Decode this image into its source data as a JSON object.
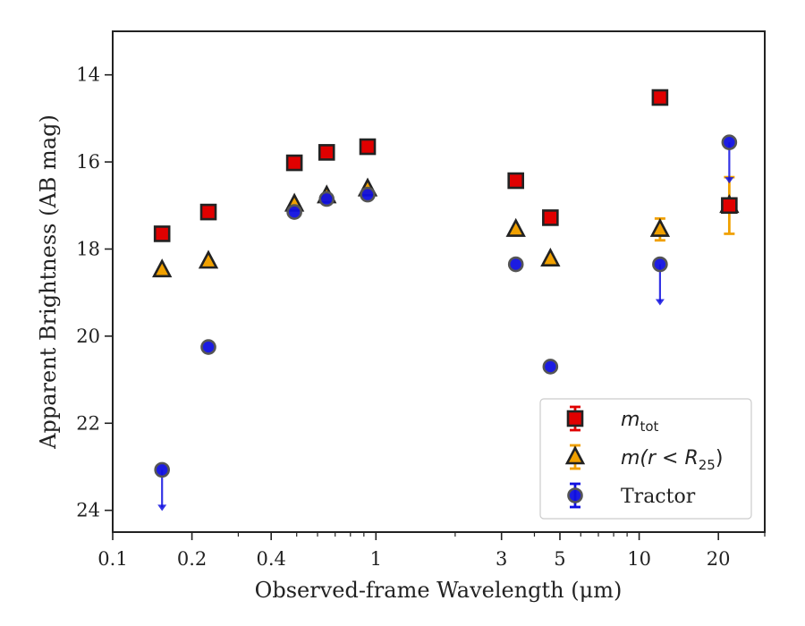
{
  "chart_data": {
    "type": "scatter",
    "xlabel": "Observed-frame Wavelength (μm)",
    "ylabel": "Apparent Brightness (AB mag)",
    "xscale": "log",
    "xlim": [
      0.1,
      30
    ],
    "ylim": [
      24.5,
      13
    ],
    "y_inverted": true,
    "grid": false,
    "legend_position": "lower-right",
    "x_ticks": [
      {
        "value": 0.1,
        "label": "0.1"
      },
      {
        "value": 0.2,
        "label": "0.2"
      },
      {
        "value": 0.4,
        "label": "0.4"
      },
      {
        "value": 1,
        "label": "1"
      },
      {
        "value": 3,
        "label": "3"
      },
      {
        "value": 5,
        "label": "5"
      },
      {
        "value": 10,
        "label": "10"
      },
      {
        "value": 20,
        "label": "20"
      }
    ],
    "y_ticks": [
      {
        "value": 14,
        "label": "14"
      },
      {
        "value": 16,
        "label": "16"
      },
      {
        "value": 18,
        "label": "18"
      },
      {
        "value": 20,
        "label": "20"
      },
      {
        "value": 22,
        "label": "22"
      },
      {
        "value": 24,
        "label": "24"
      }
    ],
    "series": [
      {
        "name": "m_tot",
        "legend_main": "m",
        "legend_sub": "tot",
        "marker": "square",
        "color": "#e00000",
        "points": [
          {
            "x": 0.154,
            "y": 17.65
          },
          {
            "x": 0.231,
            "y": 17.15
          },
          {
            "x": 0.49,
            "y": 16.02
          },
          {
            "x": 0.65,
            "y": 15.78
          },
          {
            "x": 0.93,
            "y": 15.65
          },
          {
            "x": 3.4,
            "y": 16.43
          },
          {
            "x": 4.6,
            "y": 17.28
          },
          {
            "x": 12.0,
            "y": 14.52
          },
          {
            "x": 22.0,
            "y": 17.0
          }
        ]
      },
      {
        "name": "m(r<R25)",
        "legend_main": "m(r < R",
        "legend_sub": "25",
        "legend_close": ")",
        "marker": "triangle",
        "color": "#f0a000",
        "points": [
          {
            "x": 0.154,
            "y": 18.48
          },
          {
            "x": 0.231,
            "y": 18.28
          },
          {
            "x": 0.49,
            "y": 16.97
          },
          {
            "x": 0.65,
            "y": 16.78
          },
          {
            "x": 0.93,
            "y": 16.62
          },
          {
            "x": 3.4,
            "y": 17.55
          },
          {
            "x": 4.6,
            "y": 18.23
          },
          {
            "x": 12.0,
            "y": 17.55,
            "err": 0.25
          },
          {
            "x": 22.0,
            "y": 17.0,
            "err": 0.65
          }
        ]
      },
      {
        "name": "Tractor",
        "marker": "circle",
        "color": "#1010e0",
        "points": [
          {
            "x": 0.154,
            "y": 23.07,
            "upper_limit": true
          },
          {
            "x": 0.231,
            "y": 20.25
          },
          {
            "x": 0.49,
            "y": 17.15
          },
          {
            "x": 0.65,
            "y": 16.85
          },
          {
            "x": 0.93,
            "y": 16.75
          },
          {
            "x": 3.4,
            "y": 18.35
          },
          {
            "x": 4.6,
            "y": 20.7
          },
          {
            "x": 12.0,
            "y": 18.35,
            "upper_limit": true
          },
          {
            "x": 22.0,
            "y": 15.55,
            "upper_limit": true
          }
        ]
      }
    ],
    "legend_entries": [
      {
        "series": "m_tot"
      },
      {
        "series": "m(r<R25)"
      },
      {
        "series": "Tractor",
        "label": "Tractor"
      }
    ]
  }
}
